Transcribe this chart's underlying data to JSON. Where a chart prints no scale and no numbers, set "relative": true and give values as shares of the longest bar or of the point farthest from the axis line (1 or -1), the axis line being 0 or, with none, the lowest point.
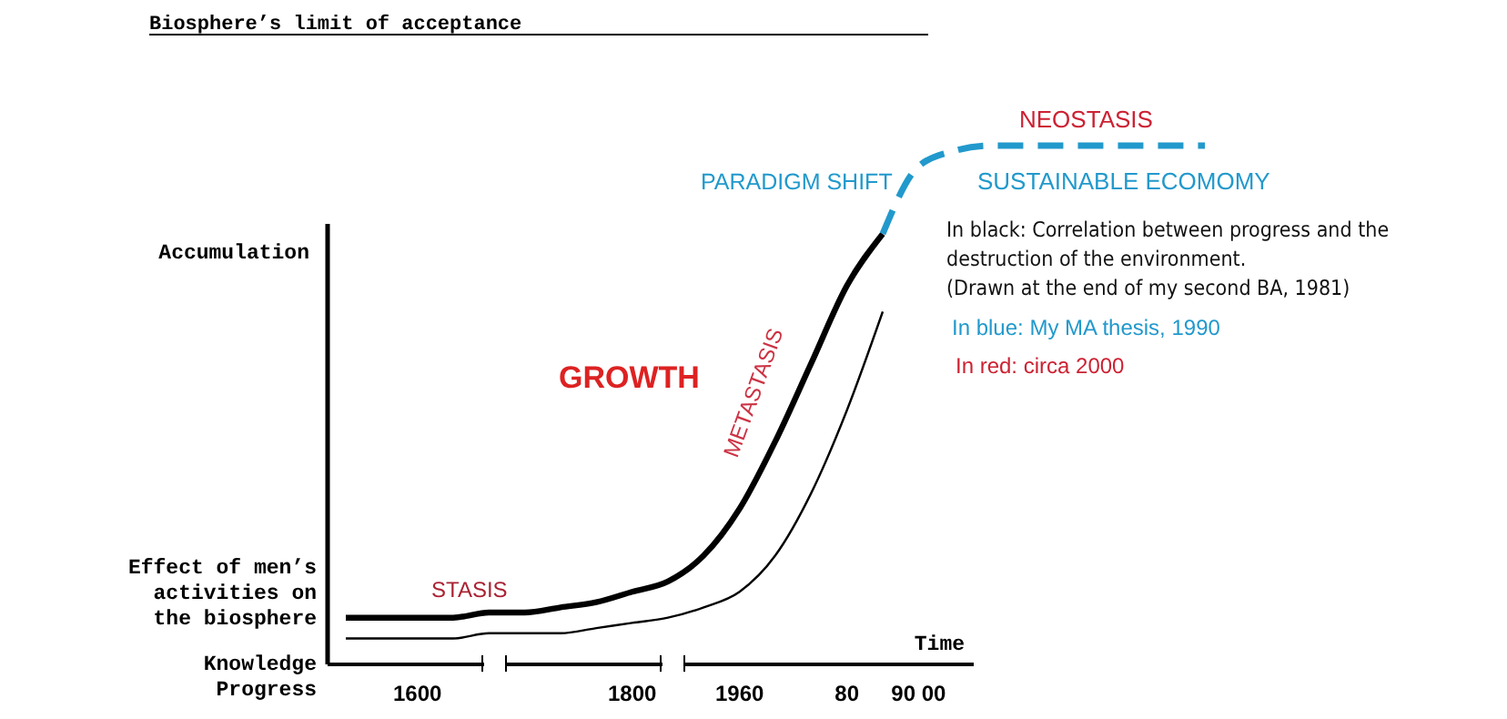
{
  "chart_data": {
    "type": "line",
    "relative": true,
    "title": "Biosphere’s limit of acceptance",
    "ylabel": "Accumulation",
    "xlabel": "Time",
    "grid": false,
    "marker": "none",
    "categories": [
      null,
      null,
      "1600",
      null,
      null,
      null,
      null,
      null,
      "1800",
      null,
      null,
      "1960",
      null,
      null,
      "80",
      null,
      "90 00",
      null,
      null,
      null,
      null,
      null,
      null,
      null,
      null
    ],
    "series": [
      {
        "name": "Effect of men’s activities on the biosphere",
        "color": "#000000",
        "line_style": "solid",
        "values": [
          0.09,
          0.09,
          0.09,
          0.09,
          0.1,
          0.1,
          0.11,
          0.12,
          0.14,
          0.16,
          0.21,
          0.3,
          0.43,
          0.58,
          0.73,
          0.83,
          null,
          null,
          null,
          null,
          null,
          null,
          null,
          null,
          null
        ]
      },
      {
        "name": "Knowledge Progress",
        "color": "#000000",
        "line_style": "solid",
        "values": [
          0.05,
          0.05,
          0.05,
          0.05,
          0.06,
          0.06,
          0.06,
          0.07,
          0.08,
          0.09,
          0.11,
          0.14,
          0.21,
          0.33,
          0.49,
          0.68,
          null,
          null,
          null,
          null,
          null,
          null,
          null,
          null,
          null
        ]
      },
      {
        "color": "#2299cc",
        "line_style": "dashed",
        "values": [
          null,
          null,
          null,
          null,
          null,
          null,
          null,
          null,
          null,
          null,
          null,
          null,
          null,
          null,
          null,
          0.83,
          0.96,
          0.99,
          1.0,
          1.0,
          1.0,
          1.0,
          1.0,
          1.0,
          1.0
        ]
      }
    ],
    "annotations": [
      "PARADIGM SHIFT",
      "NEOSTASIS",
      "SUSTAINABLE ECOMOMY",
      "In black: Correlation between progress and the",
      "destruction of the environment.",
      "(Drawn at the end of my second BA, 1981)",
      "In blue: My MA thesis, 1990",
      "In red: circa 2000",
      "GROWTH",
      "METASTASIS",
      "STASIS"
    ]
  }
}
